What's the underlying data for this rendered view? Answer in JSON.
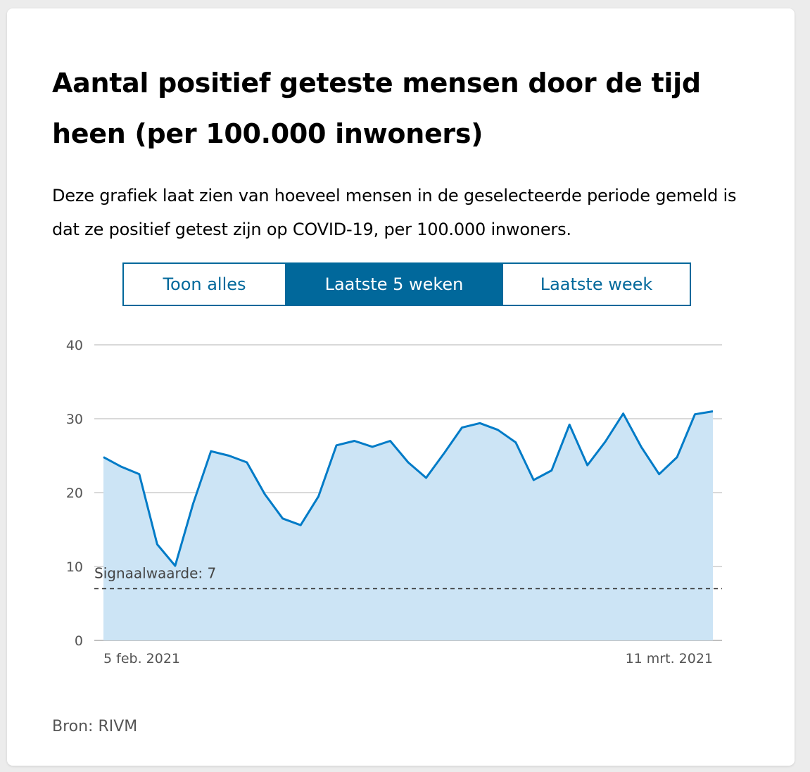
{
  "title": "Aantal positief geteste mensen door de tijd heen (per 100.000 inwoners)",
  "description": "Deze grafiek laat zien van hoeveel mensen in de geselecteerde periode gemeld is dat ze positief getest zijn op COVID-19, per 100.000 inwoners.",
  "tabs": [
    {
      "label": "Toon alles",
      "active": false
    },
    {
      "label": "Laatste 5 weken",
      "active": true
    },
    {
      "label": "Laatste week",
      "active": false
    }
  ],
  "source": "Bron: RIVM",
  "colors": {
    "line": "#007bc7",
    "area": "#cce4f5",
    "accent": "#01689b"
  },
  "chart_data": {
    "type": "area",
    "x_start_label": "5 feb. 2021",
    "x_end_label": "11 mrt. 2021",
    "yticks": [
      "0",
      "10",
      "20",
      "30",
      "40"
    ],
    "ylim": [
      0,
      40
    ],
    "values": [
      24.8,
      23.5,
      22.5,
      13.0,
      10.1,
      18.5,
      25.6,
      25.0,
      24.1,
      19.8,
      16.5,
      15.6,
      19.5,
      26.4,
      27.0,
      26.2,
      27.0,
      24.1,
      22.0,
      25.3,
      28.8,
      29.4,
      28.5,
      26.8,
      21.7,
      23.0,
      29.2,
      23.7,
      26.9,
      30.7,
      26.2,
      22.5,
      24.8,
      30.6,
      31.0
    ],
    "threshold": {
      "value": 7,
      "label": "Signaalwaarde: 7"
    },
    "grid": true
  }
}
